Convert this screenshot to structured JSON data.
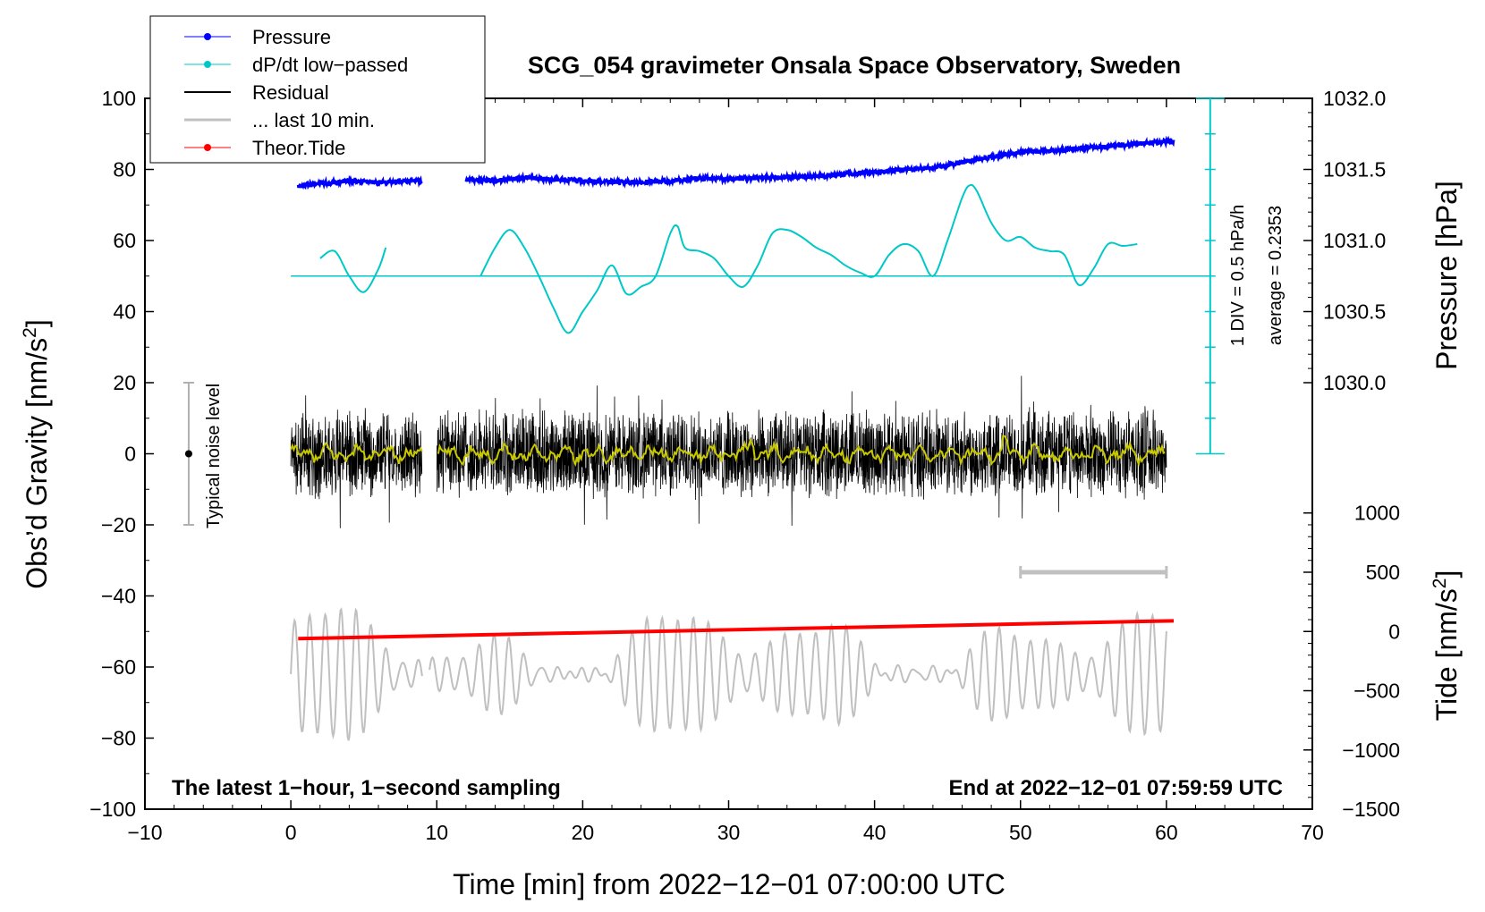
{
  "chart_data": {
    "type": "line",
    "title": "SCG_054 gravimeter Onsala Space Observatory, Sweden",
    "xlabel": "Time [min] from 2022−12−01 07:00:00 UTC",
    "ylabel_main": "Obs’d Gravity [nm/s",
    "ylabel_main_sup": "2",
    "ylabel_main_end": "]",
    "ylabel_pressure": "Pressure [hPa]",
    "ylabel_tide": "Tide [nm/s",
    "ylabel_tide_sup": "2",
    "ylabel_tide_end": "]",
    "xlim": [
      -10,
      70
    ],
    "ylim": [
      -100,
      100
    ],
    "x_ticks": [
      -10,
      0,
      10,
      20,
      30,
      40,
      50,
      60,
      70
    ],
    "x_tick_labels": [
      "−10",
      "0",
      "10",
      "20",
      "30",
      "40",
      "50",
      "60",
      "70"
    ],
    "y_ticks": [
      -100,
      -80,
      -60,
      -40,
      -20,
      0,
      20,
      40,
      60,
      80,
      100
    ],
    "y_tick_labels": [
      "−100",
      "−80",
      "−60",
      "−40",
      "−20",
      "0",
      "20",
      "40",
      "60",
      "80",
      "100"
    ],
    "pressure_axis": {
      "ticks": [
        1030.0,
        1030.5,
        1031.0,
        1031.5,
        1032.0
      ],
      "tick_labels": [
        "1030.0",
        "1030.5",
        "1031.0",
        "1031.5",
        "1032.0"
      ],
      "y_at_1030": 20,
      "y_per_hPa": 40
    },
    "tide_axis": {
      "ticks": [
        -1500,
        -1000,
        -500,
        0,
        500,
        1000
      ],
      "tick_labels": [
        "−1500",
        "−1000",
        "−500",
        "0",
        "500",
        "1000"
      ],
      "y_at_0": -50,
      "y_per_500": 16.67
    },
    "legend": {
      "position": "top-left",
      "entries": [
        {
          "label": "Pressure",
          "color": "#0000ff",
          "marker": true
        },
        {
          "label": "dP/dt low−passed",
          "color": "#00c8c8",
          "marker": true
        },
        {
          "label": "Residual",
          "color": "#000000",
          "marker": false
        },
        {
          "label": "... last 10 min.",
          "color": "#c0c0c0",
          "marker": false
        },
        {
          "label": "Theor.Tide",
          "color": "#ff0000",
          "marker": true
        }
      ]
    },
    "series": [
      {
        "name": "Pressure",
        "color": "#0000ff",
        "unit": "hPa",
        "x": [
          0.5,
          2,
          4,
          6,
          9,
          10,
          12,
          14,
          16,
          18,
          20,
          22,
          24,
          26,
          28,
          30,
          32,
          34,
          36,
          38,
          40,
          42,
          44,
          46,
          48,
          50,
          52,
          54,
          56,
          58,
          60.5
        ],
        "values": [
          1031.38,
          1031.4,
          1031.42,
          1031.41,
          1031.42,
          null,
          1031.43,
          1031.42,
          1031.44,
          1031.43,
          1031.42,
          1031.41,
          1031.41,
          1031.42,
          1031.44,
          1031.43,
          1031.44,
          1031.45,
          1031.45,
          1031.47,
          1031.48,
          1031.5,
          1031.51,
          1031.55,
          1031.59,
          1031.62,
          1031.63,
          1031.65,
          1031.66,
          1031.68,
          1031.7
        ]
      },
      {
        "name": "dP/dt low−passed",
        "color": "#00c8c8",
        "unit": "nm/s2",
        "x": [
          2,
          3,
          4,
          5,
          6,
          6.5,
          12.5,
          13,
          14,
          15,
          16,
          17,
          18,
          19,
          20,
          21,
          22,
          23,
          24,
          25,
          26,
          26.5,
          27,
          28,
          29,
          30,
          31,
          32,
          33,
          34,
          35,
          36,
          37,
          38,
          39,
          40,
          41,
          42,
          43,
          44,
          45,
          46,
          46.5,
          47,
          48,
          49,
          50,
          51,
          52,
          53,
          54,
          55,
          56,
          57,
          58
        ],
        "values": [
          55,
          57,
          50,
          45.5,
          52,
          58,
          null,
          50,
          58,
          63,
          58,
          50,
          41,
          34,
          40,
          46,
          53,
          45,
          47,
          50,
          62,
          64,
          58,
          57,
          55,
          50,
          47,
          53,
          62,
          63,
          61,
          58,
          56,
          53,
          51,
          50,
          56,
          59,
          57,
          50,
          60,
          72,
          75.5,
          74,
          65,
          60,
          61,
          58,
          57,
          56,
          47.5,
          52,
          59,
          58.5,
          59
        ]
      },
      {
        "name": "dP/dt zero line",
        "color": "#00c8c8",
        "x": [
          0,
          63
        ],
        "values": [
          50,
          50
        ]
      },
      {
        "name": "Residual",
        "color": "#000000",
        "unit": "nm/s2",
        "x_range": [
          0,
          60
        ],
        "gap": [
          9,
          10
        ],
        "amplitude": 11,
        "peak_range": [
          -25,
          23
        ]
      },
      {
        "name": "Residual smoothed",
        "color": "#c8c800",
        "unit": "nm/s2",
        "x_range": [
          0,
          60
        ],
        "gap": [
          9,
          10
        ],
        "values_range": [
          -4,
          5
        ]
      },
      {
        "name": "... last 10 min.",
        "color": "#c0c0c0",
        "unit": "nm/s2",
        "x_range": [
          0,
          60
        ],
        "gap": [
          9,
          9.5
        ],
        "center": -62,
        "peak_range": [
          -86,
          -41
        ]
      },
      {
        "name": "Theor.Tide",
        "color": "#ff0000",
        "unit": "nm/s2",
        "x": [
          0.5,
          60.5
        ],
        "values": [
          -52,
          -47
        ]
      }
    ],
    "annotations": {
      "noise_label": "Typical noise level",
      "noise_bar": {
        "x": -7,
        "y_min": -20,
        "y_max": 20,
        "center": 0
      },
      "scale_bar_div": "1 DIV = 0.5 hPa/h",
      "scale_bar_average": "average = 0.2353",
      "scale_bar": {
        "x": 63,
        "y_min": 0,
        "y_max": 100
      },
      "tide_scale_bar": {
        "x_min": 50,
        "x_max": 60,
        "tide_value": 500
      },
      "bottom_left": "The latest 1−hour, 1−second sampling",
      "bottom_right": "End at 2022−12−01 07:59:59 UTC"
    }
  }
}
